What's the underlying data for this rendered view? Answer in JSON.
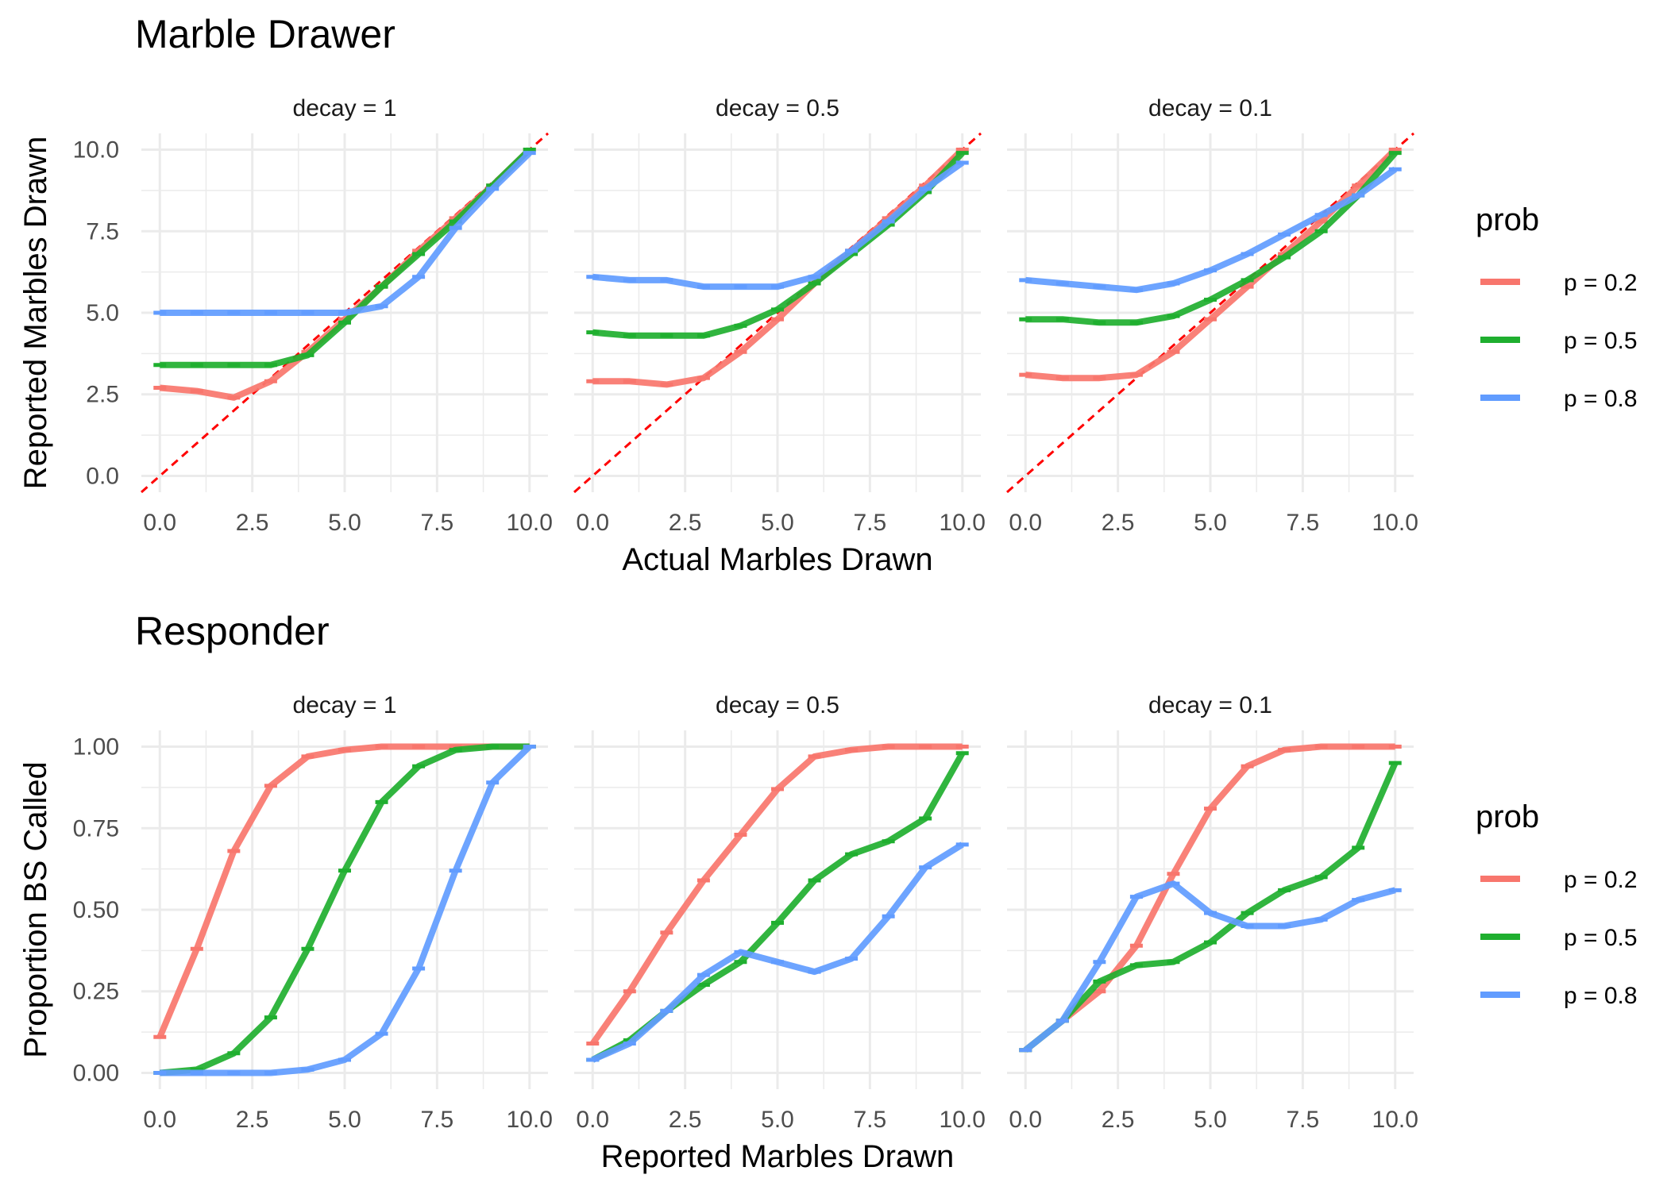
{
  "colors": {
    "p02": "#F8766D",
    "p05": "#1FAF2F",
    "p08": "#619CFF",
    "diagonal": "#FF0000",
    "grid": "#EBEBEB",
    "text": "#000000",
    "tick_text": "#4D4D4D"
  },
  "chart_data": [
    {
      "type": "line",
      "title": "Marble Drawer",
      "xlabel": "Actual Marbles Drawn",
      "ylabel": "Reported Marbles Drawn",
      "xlim": [
        -0.5,
        10.5
      ],
      "ylim": [
        -0.5,
        10.5
      ],
      "x_ticks": [
        0,
        2.5,
        5,
        7.5,
        10
      ],
      "x_tick_labels": [
        "0.0",
        "2.5",
        "5.0",
        "7.5",
        "10.0"
      ],
      "y_ticks": [
        0,
        2.5,
        5,
        7.5,
        10
      ],
      "y_tick_labels": [
        "0.0",
        "2.5",
        "5.0",
        "7.5",
        "10.0"
      ],
      "reference_line": "y = x (dashed)",
      "legend": {
        "title": "prob",
        "placement": "right",
        "entries": [
          "p = 0.2",
          "p = 0.5",
          "p = 0.8"
        ]
      },
      "facets": [
        {
          "label": "decay = 1",
          "x": [
            0,
            1,
            2,
            3,
            4,
            5,
            6,
            7,
            8,
            9,
            10
          ],
          "series": [
            {
              "name": "p = 0.2",
              "values": [
                2.7,
                2.6,
                2.4,
                2.9,
                3.8,
                4.8,
                5.8,
                6.9,
                7.9,
                8.9,
                10.0
              ]
            },
            {
              "name": "p = 0.5",
              "values": [
                3.4,
                3.4,
                3.4,
                3.4,
                3.7,
                4.7,
                5.8,
                6.8,
                7.8,
                8.9,
                10.0
              ]
            },
            {
              "name": "p = 0.8",
              "values": [
                5.0,
                5.0,
                5.0,
                5.0,
                5.0,
                5.0,
                5.2,
                6.1,
                7.6,
                8.8,
                9.9
              ]
            }
          ]
        },
        {
          "label": "decay = 0.5",
          "x": [
            0,
            1,
            2,
            3,
            4,
            5,
            6,
            7,
            8,
            9,
            10
          ],
          "series": [
            {
              "name": "p = 0.2",
              "values": [
                2.9,
                2.9,
                2.8,
                3.0,
                3.8,
                4.8,
                5.9,
                6.9,
                7.9,
                8.9,
                10.0
              ]
            },
            {
              "name": "p = 0.5",
              "values": [
                4.4,
                4.3,
                4.3,
                4.3,
                4.6,
                5.1,
                5.9,
                6.8,
                7.7,
                8.7,
                9.9
              ]
            },
            {
              "name": "p = 0.8",
              "values": [
                6.1,
                6.0,
                6.0,
                5.8,
                5.8,
                5.8,
                6.1,
                6.9,
                7.8,
                8.8,
                9.6
              ]
            }
          ]
        },
        {
          "label": "decay = 0.1",
          "x": [
            0,
            1,
            2,
            3,
            4,
            5,
            6,
            7,
            8,
            9,
            10
          ],
          "series": [
            {
              "name": "p = 0.2",
              "values": [
                3.1,
                3.0,
                3.0,
                3.1,
                3.8,
                4.8,
                5.8,
                6.8,
                7.8,
                8.9,
                10.0
              ]
            },
            {
              "name": "p = 0.5",
              "values": [
                4.8,
                4.8,
                4.7,
                4.7,
                4.9,
                5.4,
                6.0,
                6.7,
                7.5,
                8.6,
                9.9
              ]
            },
            {
              "name": "p = 0.8",
              "values": [
                6.0,
                5.9,
                5.8,
                5.7,
                5.9,
                6.3,
                6.8,
                7.4,
                8.0,
                8.6,
                9.4
              ]
            }
          ]
        }
      ]
    },
    {
      "type": "line",
      "title": "Responder",
      "xlabel": "Reported Marbles Drawn",
      "ylabel": "Proportion BS Called",
      "xlim": [
        -0.5,
        10.5
      ],
      "ylim": [
        -0.05,
        1.05
      ],
      "x_ticks": [
        0,
        2.5,
        5,
        7.5,
        10
      ],
      "x_tick_labels": [
        "0.0",
        "2.5",
        "5.0",
        "7.5",
        "10.0"
      ],
      "y_ticks": [
        0,
        0.25,
        0.5,
        0.75,
        1
      ],
      "y_tick_labels": [
        "0.00",
        "0.25",
        "0.50",
        "0.75",
        "1.00"
      ],
      "legend": {
        "title": "prob",
        "placement": "right",
        "entries": [
          "p = 0.2",
          "p = 0.5",
          "p = 0.8"
        ]
      },
      "facets": [
        {
          "label": "decay = 1",
          "x": [
            0,
            1,
            2,
            3,
            4,
            5,
            6,
            7,
            8,
            9,
            10
          ],
          "series": [
            {
              "name": "p = 0.2",
              "values": [
                0.11,
                0.38,
                0.68,
                0.88,
                0.97,
                0.99,
                1.0,
                1.0,
                1.0,
                1.0,
                1.0
              ]
            },
            {
              "name": "p = 0.5",
              "values": [
                0.0,
                0.01,
                0.06,
                0.17,
                0.38,
                0.62,
                0.83,
                0.94,
                0.99,
                1.0,
                1.0
              ]
            },
            {
              "name": "p = 0.8",
              "values": [
                0.0,
                0.0,
                0.0,
                0.0,
                0.01,
                0.04,
                0.12,
                0.32,
                0.62,
                0.89,
                1.0
              ]
            }
          ]
        },
        {
          "label": "decay = 0.5",
          "x": [
            0,
            1,
            2,
            3,
            4,
            5,
            6,
            7,
            8,
            9,
            10
          ],
          "series": [
            {
              "name": "p = 0.2",
              "values": [
                0.09,
                0.25,
                0.43,
                0.59,
                0.73,
                0.87,
                0.97,
                0.99,
                1.0,
                1.0,
                1.0
              ]
            },
            {
              "name": "p = 0.5",
              "values": [
                0.04,
                0.1,
                0.19,
                0.27,
                0.34,
                0.46,
                0.59,
                0.67,
                0.71,
                0.78,
                0.98
              ]
            },
            {
              "name": "p = 0.8",
              "values": [
                0.04,
                0.09,
                0.19,
                0.3,
                0.37,
                0.34,
                0.31,
                0.35,
                0.48,
                0.63,
                0.7
              ]
            }
          ]
        },
        {
          "label": "decay = 0.1",
          "x": [
            0,
            1,
            2,
            3,
            4,
            5,
            6,
            7,
            8,
            9,
            10
          ],
          "series": [
            {
              "name": "p = 0.2",
              "values": [
                0.07,
                0.16,
                0.25,
                0.39,
                0.61,
                0.81,
                0.94,
                0.99,
                1.0,
                1.0,
                1.0
              ]
            },
            {
              "name": "p = 0.5",
              "values": [
                0.07,
                0.16,
                0.28,
                0.33,
                0.34,
                0.4,
                0.49,
                0.56,
                0.6,
                0.69,
                0.95
              ]
            },
            {
              "name": "p = 0.8",
              "values": [
                0.07,
                0.16,
                0.34,
                0.54,
                0.58,
                0.49,
                0.45,
                0.45,
                0.47,
                0.53,
                0.56
              ]
            }
          ]
        }
      ]
    }
  ]
}
